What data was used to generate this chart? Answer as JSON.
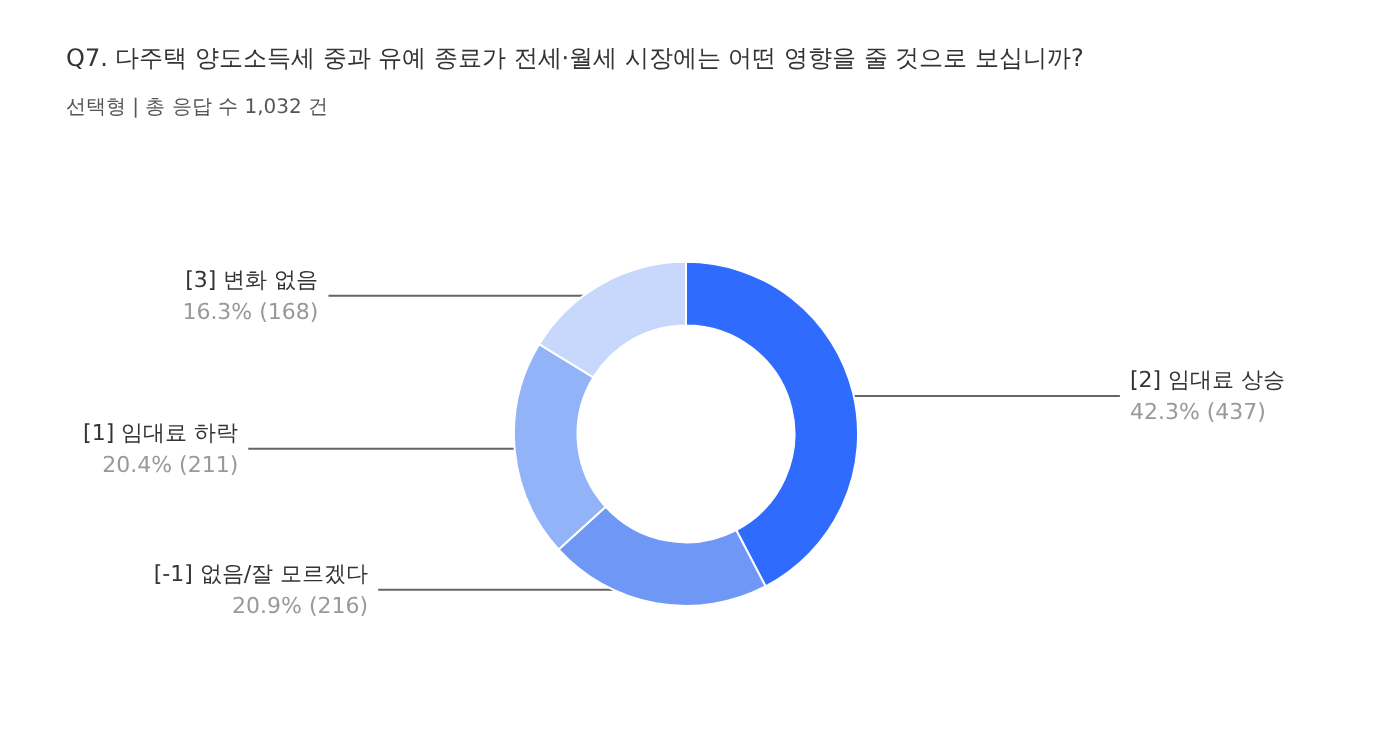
{
  "chart_data": {
    "type": "donut",
    "title": "Q7. 다주택 양도소득세 중과 유예 종료가 전세·월세 시장에는 어떤 영향을 줄 것으로 보십니까?",
    "subtitle": "선택형 | 총 응답 수 1,032 건",
    "categories": [
      "[2] 임대료 상승",
      "[-1] 없음/잘 모르겠다",
      "[1] 임대료 하락",
      "[3] 변화 없음"
    ],
    "values": [
      437,
      216,
      211,
      168
    ],
    "value_labels": [
      "42.3% (437)",
      "20.9% (216)",
      "20.4% (211)",
      "16.3% (168)"
    ],
    "colors": [
      "#2f6bfc",
      "#6f98f6",
      "#93b3f9",
      "#c8d8fc"
    ],
    "legend": false
  }
}
